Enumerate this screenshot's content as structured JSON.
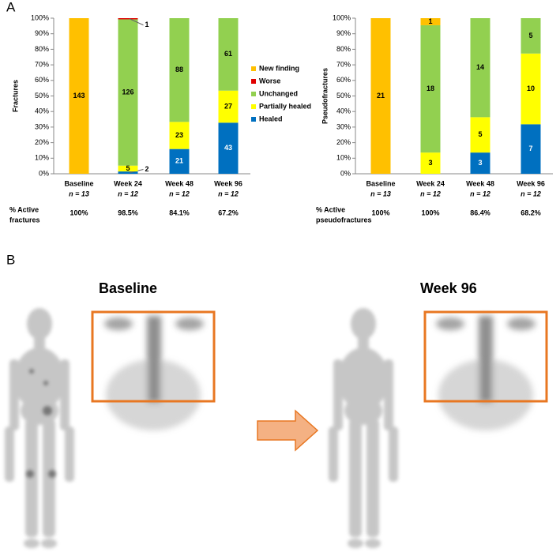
{
  "panel_labels": [
    "A",
    "B"
  ],
  "chart_data": [
    {
      "type": "bar",
      "stacking": "percent",
      "y_label": "Fractures",
      "categories": [
        "Baseline",
        "Week 24",
        "Week 48",
        "Week 96"
      ],
      "n_labels": [
        "n = 13",
        "n = 12",
        "n = 12",
        "n = 12"
      ],
      "footer_label": [
        "% Active",
        "fractures"
      ],
      "footer_values": [
        "100%",
        "98.5%",
        "84.1%",
        "67.2%"
      ],
      "series": [
        {
          "name": "Healed",
          "color": "#0070C0",
          "values": [
            null,
            2,
            21,
            43
          ]
        },
        {
          "name": "Partially healed",
          "color": "#FFFF00",
          "values": [
            null,
            5,
            23,
            27
          ]
        },
        {
          "name": "Unchanged",
          "color": "#92D050",
          "values": [
            null,
            126,
            88,
            61
          ]
        },
        {
          "name": "Worse",
          "color": "#E00000",
          "values": [
            null,
            1,
            null,
            null
          ]
        },
        {
          "name": "New finding",
          "color": "#FFC000",
          "values": [
            143,
            null,
            null,
            null
          ]
        }
      ],
      "ylim": [
        0,
        100
      ],
      "yticks": [
        {
          "value": 0,
          "label": "0%"
        },
        {
          "value": 10,
          "label": "10%"
        },
        {
          "value": 20,
          "label": "20%"
        },
        {
          "value": 30,
          "label": "30%"
        },
        {
          "value": 40,
          "label": "40%"
        },
        {
          "value": 50,
          "label": "50%"
        },
        {
          "value": 60,
          "label": "60%"
        },
        {
          "value": 70,
          "label": "70%"
        },
        {
          "value": 80,
          "label": "80%"
        },
        {
          "value": 90,
          "label": "90%"
        },
        {
          "value": 100,
          "label": "100%"
        }
      ],
      "legend": "right"
    },
    {
      "type": "bar",
      "stacking": "percent",
      "y_label": "Pseudofractures",
      "categories": [
        "Baseline",
        "Week 24",
        "Week 48",
        "Week 96"
      ],
      "n_labels": [
        "n = 13",
        "n = 12",
        "n = 12",
        "n = 12"
      ],
      "footer_label": [
        "% Active",
        "pseudofractures"
      ],
      "footer_values": [
        "100%",
        "100%",
        "86.4%",
        "68.2%"
      ],
      "series": [
        {
          "name": "Healed",
          "color": "#0070C0",
          "values": [
            null,
            null,
            3,
            7
          ]
        },
        {
          "name": "Partially healed",
          "color": "#FFFF00",
          "values": [
            null,
            3,
            5,
            10
          ]
        },
        {
          "name": "Unchanged",
          "color": "#92D050",
          "values": [
            null,
            18,
            14,
            5
          ]
        },
        {
          "name": "New finding",
          "color": "#FFC000",
          "values": [
            21,
            1,
            null,
            null
          ]
        }
      ],
      "ylim": [
        0,
        100
      ],
      "yticks": [
        {
          "value": 0,
          "label": "0%"
        },
        {
          "value": 10,
          "label": "10%"
        },
        {
          "value": 20,
          "label": "20%"
        },
        {
          "value": 30,
          "label": "30%"
        },
        {
          "value": 40,
          "label": "40%"
        },
        {
          "value": 50,
          "label": "50%"
        },
        {
          "value": 60,
          "label": "60%"
        },
        {
          "value": 70,
          "label": "70%"
        },
        {
          "value": 80,
          "label": "80%"
        },
        {
          "value": 90,
          "label": "90%"
        },
        {
          "value": 100,
          "label": "100%"
        }
      ],
      "legend": null
    }
  ],
  "scan_titles": [
    "Baseline",
    "Week 96"
  ]
}
